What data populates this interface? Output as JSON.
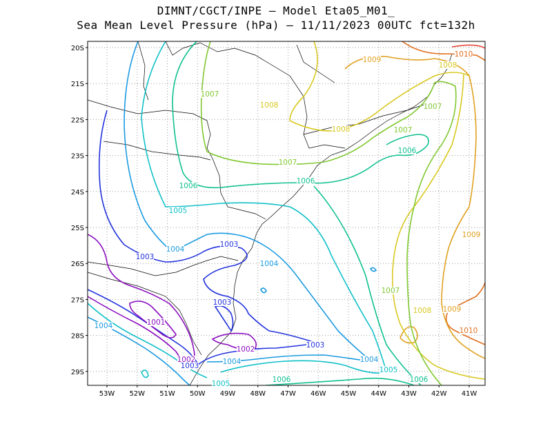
{
  "title_line1": "DIMNT/CGCT/INPE –  Model Eta05_M01_",
  "title_line2": "Sea Mean Level Pressure (hPa) – 11/11/2023 00UTC fct=132h",
  "lat_labels": [
    "20S",
    "21S",
    "22S",
    "23S",
    "24S",
    "25S",
    "26S",
    "27S",
    "28S",
    "29S"
  ],
  "lon_labels": [
    "53W",
    "52W",
    "51W",
    "50W",
    "49W",
    "48W",
    "47W",
    "46W",
    "45W",
    "44W",
    "43W",
    "42W",
    "41W"
  ],
  "contour_labels": [
    {
      "t": "1001",
      "c": "#8a0fbf"
    },
    {
      "t": "1002",
      "c": "#8a0fbf"
    },
    {
      "t": "1002",
      "c": "#8a0fbf"
    },
    {
      "t": "1003",
      "c": "#2233dd"
    },
    {
      "t": "1003",
      "c": "#2233dd"
    },
    {
      "t": "1003",
      "c": "#2233dd"
    },
    {
      "t": "1003",
      "c": "#2233dd"
    },
    {
      "t": "1003",
      "c": "#2233dd"
    },
    {
      "t": "1004",
      "c": "#1a9ae0"
    },
    {
      "t": "1004",
      "c": "#1a9ae0"
    },
    {
      "t": "1004",
      "c": "#1a9ae0"
    },
    {
      "t": "1004",
      "c": "#1a9ae0"
    },
    {
      "t": "1004",
      "c": "#1a9ae0"
    },
    {
      "t": "1005",
      "c": "#10c0c8"
    },
    {
      "t": "1005",
      "c": "#10c0c8"
    },
    {
      "t": "1005",
      "c": "#10c0c8"
    },
    {
      "t": "1006",
      "c": "#10c090"
    },
    {
      "t": "1006",
      "c": "#10c090"
    },
    {
      "t": "1006",
      "c": "#10c090"
    },
    {
      "t": "1006",
      "c": "#10c090"
    },
    {
      "t": "1006",
      "c": "#10c090"
    },
    {
      "t": "1007",
      "c": "#80c830"
    },
    {
      "t": "1007",
      "c": "#80c830"
    },
    {
      "t": "1007",
      "c": "#80c830"
    },
    {
      "t": "1007",
      "c": "#80c830"
    },
    {
      "t": "1007",
      "c": "#80c830"
    },
    {
      "t": "1008",
      "c": "#d8c820"
    },
    {
      "t": "1008",
      "c": "#d8c820"
    },
    {
      "t": "1008",
      "c": "#d8c820"
    },
    {
      "t": "1008",
      "c": "#d8c820"
    },
    {
      "t": "1009",
      "c": "#e0a020"
    },
    {
      "t": "1009",
      "c": "#e0a020"
    },
    {
      "t": "1009",
      "c": "#e0a020"
    },
    {
      "t": "1010",
      "c": "#e07020"
    },
    {
      "t": "1010",
      "c": "#e07020"
    }
  ]
}
